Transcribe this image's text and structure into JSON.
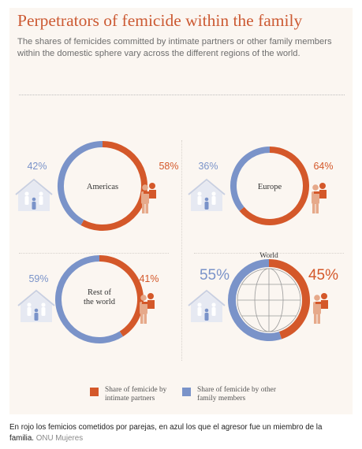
{
  "header": {
    "title": "Perpetrators of femicide within the family",
    "subtitle": "The shares of femicides committed by intimate partners or other family members within the domestic sphere vary across the different regions of the world."
  },
  "colors": {
    "intimate_partner": "#d4582a",
    "family_member": "#7a93c9",
    "icon_blue": "#7a93c9",
    "icon_orange": "#e6a98a",
    "title": "#cc5a33",
    "background": "#fbf6f1"
  },
  "chart_data": [
    {
      "type": "pie",
      "label": "Americas",
      "categories": [
        "Share of femicide by intimate partners",
        "Share of femicide by other family members"
      ],
      "values": [
        58,
        42
      ],
      "value_labels": [
        "58%",
        "42%"
      ]
    },
    {
      "type": "pie",
      "label": "Europe",
      "categories": [
        "Share of femicide by intimate partners",
        "Share of femicide by other family members"
      ],
      "values": [
        64,
        36
      ],
      "value_labels": [
        "64%",
        "36%"
      ]
    },
    {
      "type": "pie",
      "label": "Rest of\nthe world",
      "categories": [
        "Share of femicide by intimate partners",
        "Share of femicide by other family members"
      ],
      "values": [
        41,
        59
      ],
      "value_labels": [
        "41%",
        "59%"
      ]
    },
    {
      "type": "pie",
      "label": "World",
      "categories": [
        "Share of femicide by intimate partners",
        "Share of femicide by other family members"
      ],
      "values": [
        45,
        55
      ],
      "value_labels": [
        "45%",
        "55%"
      ]
    }
  ],
  "legend": [
    {
      "label": "Share of femicide by intimate partners"
    },
    {
      "label": "Share of femicide by other family members"
    }
  ],
  "caption": {
    "text": "En rojo los femicios cometidos por parejas, en azul los que el agresor fue un miembro de la familia.",
    "source": "ONU Mujeres"
  }
}
